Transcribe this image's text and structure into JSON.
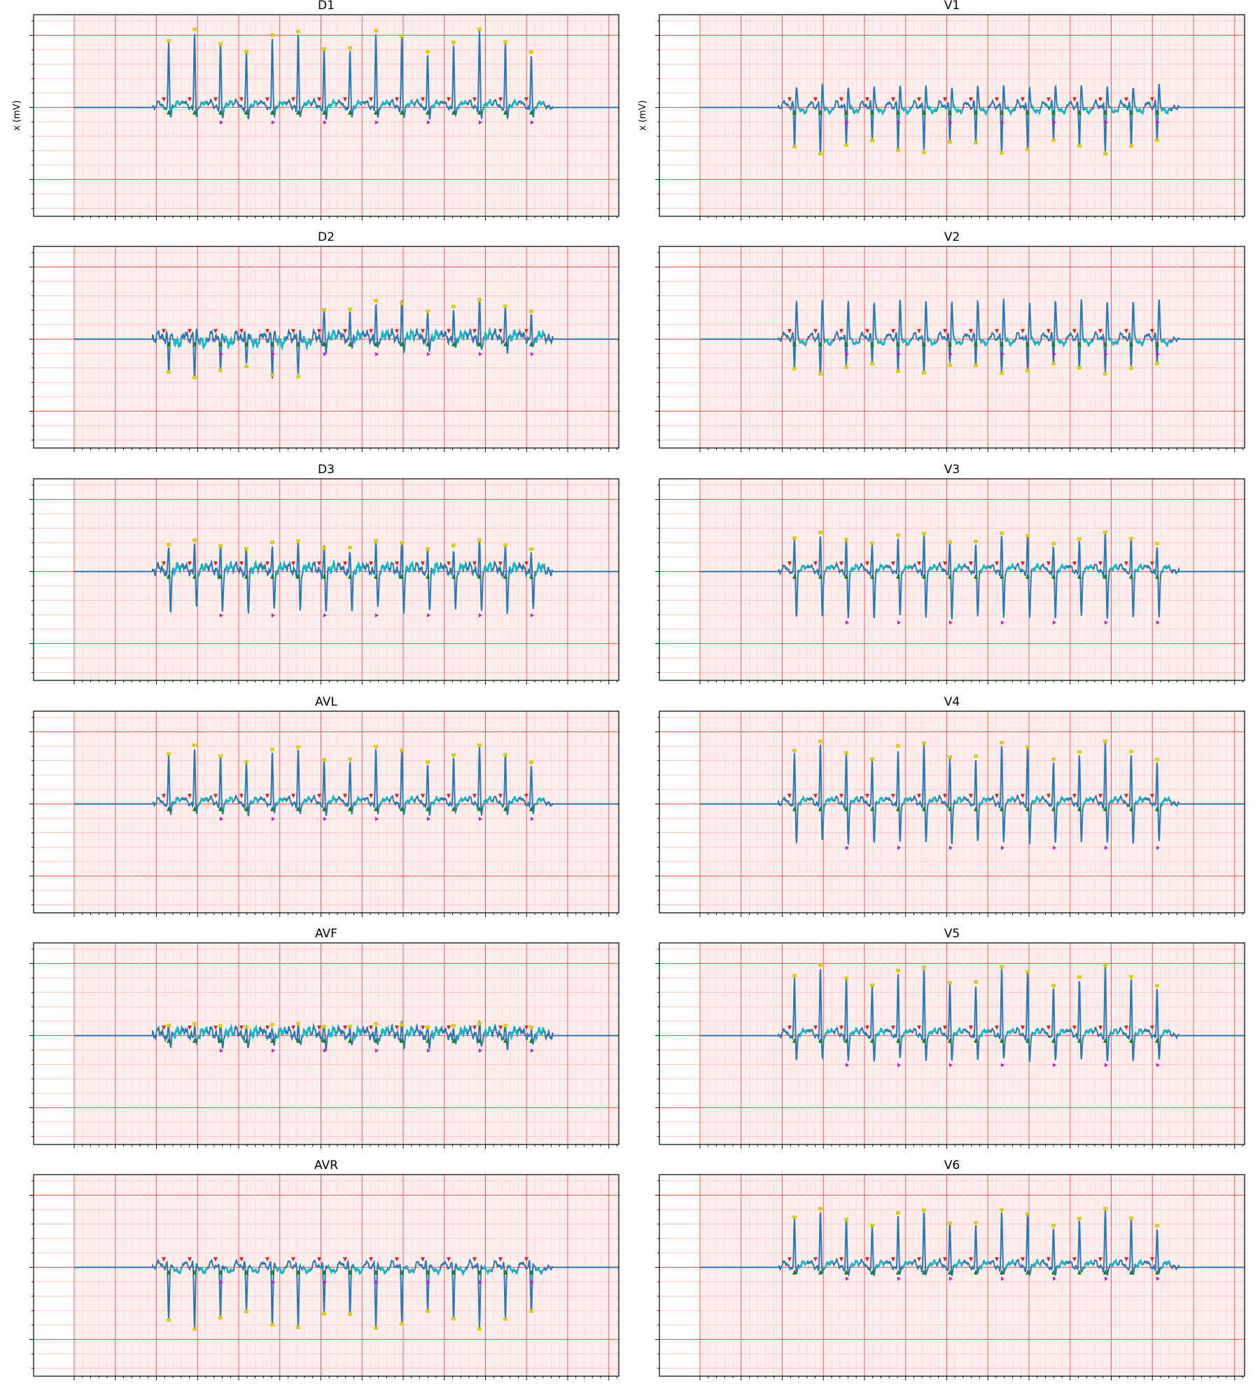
{
  "figure": {
    "ylabel": "x (mV)",
    "colors": {
      "grid_major": "#ff5a5a",
      "grid_minor": "#ffbcbc",
      "grid_fine": "#ffd2d2",
      "background_signal": "#fdeeee",
      "signal": "#2a78b4",
      "st_segment": "#11b8c8",
      "marker_peak": "#e0cc10",
      "marker_r_on": "#1a7f1a",
      "marker_p": "#e81c1c",
      "marker_s": "#d018d0"
    }
  },
  "chart_data": [
    {
      "lead": "D1",
      "type": "line",
      "title": "D1",
      "ylabel": "x (mV)",
      "polarity": 1,
      "qrs_height": 1.0,
      "s_depth": 0.15,
      "polarity_switch_beat": null,
      "noise": 0.02
    },
    {
      "lead": "V1",
      "type": "line",
      "title": "V1",
      "ylabel": "x (mV)",
      "polarity": -1,
      "qrs_height": 0.6,
      "s_depth": 0.5,
      "polarity_switch_beat": null,
      "noise": 0.02
    },
    {
      "lead": "D2",
      "type": "line",
      "title": "D2",
      "ylabel": "",
      "polarity": -1,
      "qrs_height": 0.5,
      "s_depth": 0.15,
      "polarity_switch_beat": 6,
      "noise": 0.04
    },
    {
      "lead": "V2",
      "type": "line",
      "title": "V2",
      "ylabel": "",
      "polarity": -1,
      "qrs_height": 0.45,
      "s_depth": 0.9,
      "polarity_switch_beat": null,
      "noise": 0.02
    },
    {
      "lead": "D3",
      "type": "line",
      "title": "D3",
      "ylabel": "",
      "polarity": 1,
      "qrs_height": 0.4,
      "s_depth": 0.55,
      "polarity_switch_beat": null,
      "noise": 0.04
    },
    {
      "lead": "V3",
      "type": "line",
      "title": "V3",
      "ylabel": "",
      "polarity": 1,
      "qrs_height": 0.5,
      "s_depth": 0.65,
      "polarity_switch_beat": null,
      "noise": 0.02
    },
    {
      "lead": "AVL",
      "type": "line",
      "title": "AVL",
      "ylabel": "",
      "polarity": 1,
      "qrs_height": 0.75,
      "s_depth": 0.15,
      "polarity_switch_beat": null,
      "noise": 0.02
    },
    {
      "lead": "V4",
      "type": "line",
      "title": "V4",
      "ylabel": "",
      "polarity": 1,
      "qrs_height": 0.8,
      "s_depth": 0.55,
      "polarity_switch_beat": null,
      "noise": 0.02
    },
    {
      "lead": "AVF",
      "type": "line",
      "title": "AVF",
      "ylabel": "",
      "polarity": 1,
      "qrs_height": 0.15,
      "s_depth": 0.15,
      "polarity_switch_beat": null,
      "noise": 0.04
    },
    {
      "lead": "V5",
      "type": "line",
      "title": "V5",
      "ylabel": "",
      "polarity": 1,
      "qrs_height": 0.9,
      "s_depth": 0.35,
      "polarity_switch_beat": null,
      "noise": 0.02
    },
    {
      "lead": "AVR",
      "type": "line",
      "title": "AVR",
      "ylabel": "",
      "polarity": -1,
      "qrs_height": 0.8,
      "s_depth": 0.05,
      "polarity_switch_beat": null,
      "noise": 0.02
    },
    {
      "lead": "V6",
      "type": "line",
      "title": "V6",
      "ylabel": "",
      "polarity": 1,
      "qrs_height": 0.75,
      "s_depth": 0.1,
      "polarity_switch_beat": null,
      "noise": 0.02
    }
  ]
}
